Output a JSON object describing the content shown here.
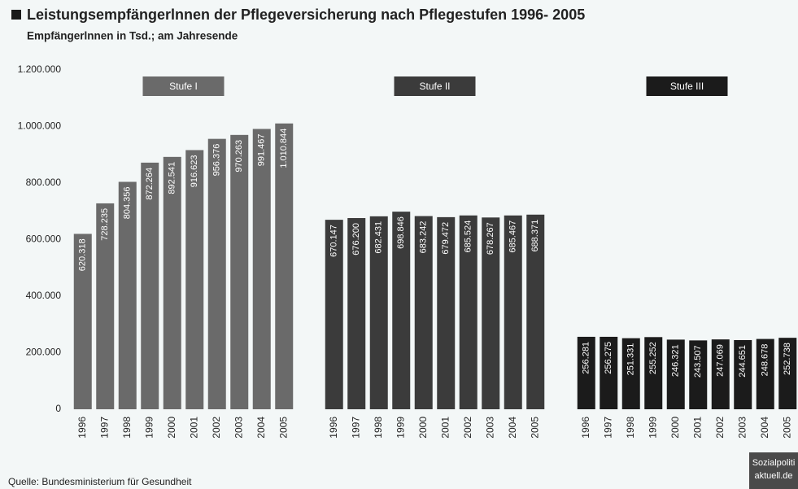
{
  "chart_data": {
    "type": "bar",
    "title": "Leistungsempfängerlnnen der Pflegeversicherung nach Pflegestufen 1996- 2005",
    "subtitle": "Empfängerlnnen in Tsd.; am Jahresende",
    "source": "Quelle: Bundesministerium für Gesundheit",
    "watermark": [
      "Sozialpoliti",
      "aktuell.de"
    ],
    "categories": [
      "1996",
      "1997",
      "1998",
      "1999",
      "2000",
      "2001",
      "2002",
      "2003",
      "2004",
      "2005"
    ],
    "series": [
      {
        "name": "Stufe I",
        "color": "#6a6a6a",
        "values": [
          620318,
          728235,
          804356,
          872264,
          892541,
          916623,
          956376,
          970263,
          991467,
          1010844
        ],
        "value_labels": [
          "620.318",
          "728.235",
          "804.356",
          "872.264",
          "892.541",
          "916.623",
          "956.376",
          "970.263",
          "991.467",
          "1.010.844"
        ]
      },
      {
        "name": "Stufe II",
        "color": "#3b3b3b",
        "values": [
          670147,
          676200,
          682431,
          698846,
          683242,
          679472,
          685524,
          678267,
          685467,
          688371
        ],
        "value_labels": [
          "670.147",
          "676.200",
          "682.431",
          "698.846",
          "683.242",
          "679.472",
          "685.524",
          "678.267",
          "685.467",
          "688.371"
        ]
      },
      {
        "name": "Stufe III",
        "color": "#1b1b1b",
        "values": [
          256281,
          256275,
          251331,
          255252,
          246321,
          243507,
          247069,
          244651,
          248678,
          252738
        ],
        "value_labels": [
          "256.281",
          "256.275",
          "251.331",
          "255.252",
          "246.321",
          "243.507",
          "247.069",
          "244.651",
          "248.678",
          "252.738"
        ]
      }
    ],
    "ylim": [
      0,
      1200000
    ],
    "yticks": [
      0,
      {
        "value": 200000,
        "label": "200.000"
      },
      {
        "value": 400000,
        "label": "400.000"
      },
      {
        "value": 600000,
        "label": "600.000"
      },
      {
        "value": 800000,
        "label": "800.000"
      },
      {
        "value": 1000000,
        "label": "1.000.000"
      },
      {
        "value": 1200000,
        "label": "1.200.000"
      }
    ],
    "grid": false
  }
}
